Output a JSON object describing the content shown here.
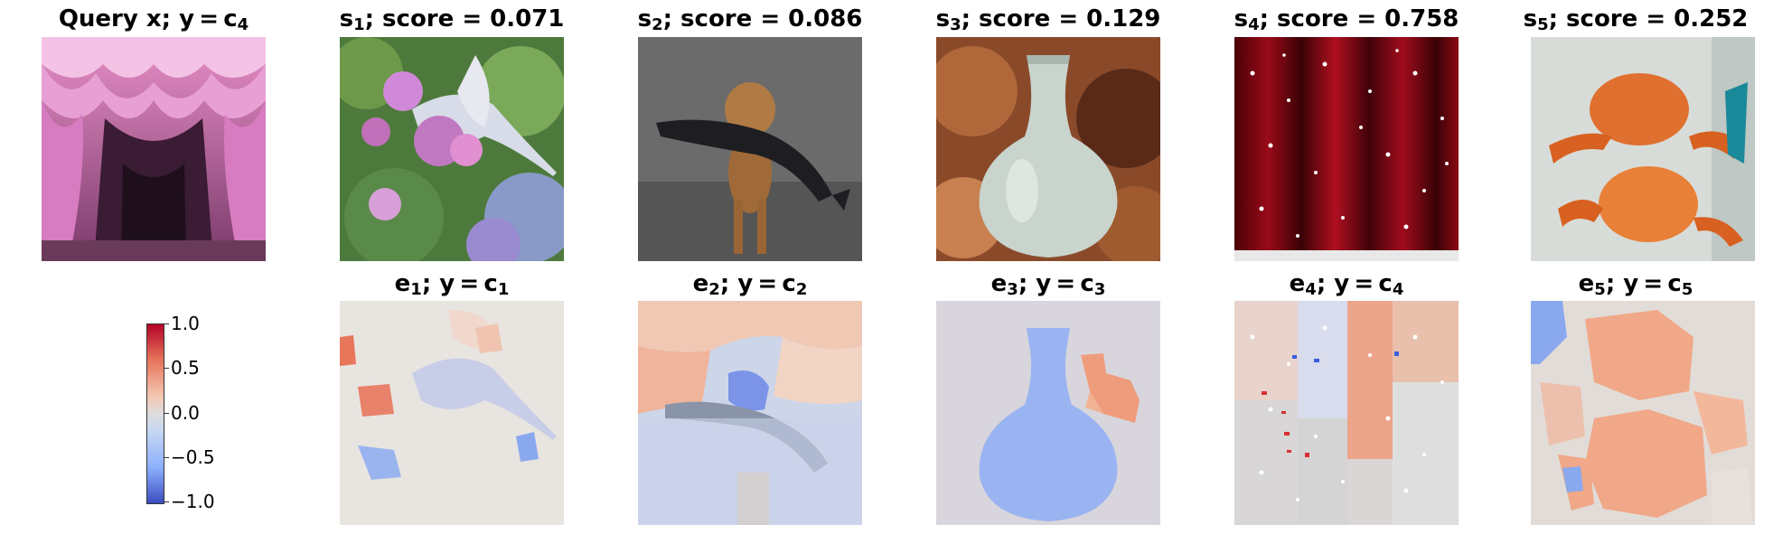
{
  "top_row": [
    {
      "prefix": "Query x; y = c",
      "sub": "4",
      "suffix": "",
      "icon": "stage-curtain-image"
    },
    {
      "prefix": "s",
      "sub": "1",
      "suffix": "; score = 0.071",
      "icon": "hummingbird-flower-image"
    },
    {
      "prefix": "s",
      "sub": "2",
      "suffix": "; score = 0.086",
      "icon": "dog-with-fish-image"
    },
    {
      "prefix": "s",
      "sub": "3",
      "suffix": "; score = 0.129",
      "icon": "celadon-vase-image"
    },
    {
      "prefix": "s",
      "sub": "4",
      "suffix": "; score = 0.758",
      "icon": "red-curtain-image"
    },
    {
      "prefix": "s",
      "sub": "5",
      "suffix": "; score = 0.252",
      "icon": "crab-image"
    }
  ],
  "bottom_row": [
    {
      "prefix": "e",
      "sub": "1",
      "suffix": "; y = c",
      "sub2": "1",
      "icon": "explanation-heatmap-1"
    },
    {
      "prefix": "e",
      "sub": "2",
      "suffix": "; y = c",
      "sub2": "2",
      "icon": "explanation-heatmap-2"
    },
    {
      "prefix": "e",
      "sub": "3",
      "suffix": "; y = c",
      "sub2": "3",
      "icon": "explanation-heatmap-3"
    },
    {
      "prefix": "e",
      "sub": "4",
      "suffix": "; y = c",
      "sub2": "4",
      "icon": "explanation-heatmap-4"
    },
    {
      "prefix": "e",
      "sub": "5",
      "suffix": "; y = c",
      "sub2": "5",
      "icon": "explanation-heatmap-5"
    }
  ],
  "colorbar": {
    "ticks": [
      "1.0",
      "0.5",
      "0.0",
      "−0.5",
      "−1.0"
    ],
    "colormap": [
      "#b40426",
      "#dddddd",
      "#3b4cc0"
    ]
  }
}
